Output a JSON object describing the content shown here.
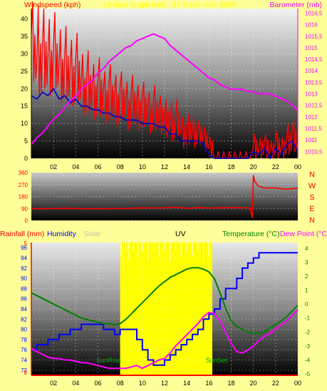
{
  "header": {
    "left_title": "Windspeed (kph)",
    "center_title": "24 hour graph data : 17 November 2006",
    "right_title": "Barometer (mb)"
  },
  "dir_labels": [
    "N",
    "W",
    "S",
    "E",
    "N"
  ],
  "bottom_header": {
    "rainfall": "Rainfall (mm)",
    "humidity": "Humidity",
    "solar": "Solar",
    "uv": "UV",
    "temperature": "Temperature (°C)",
    "dewpoint": "Dew Point (°C)"
  },
  "annotations": {
    "sunrise": "SunRise",
    "sunset": "SunSet"
  },
  "colors": {
    "background": "#ffff99",
    "wind": "#ff0000",
    "wind_avg": "#0000cc",
    "barometer": "#ff00ff",
    "humidity": "#0000ff",
    "temperature": "#008000",
    "dewpoint": "#ff00ff",
    "rain": "#ff0000",
    "daylight": "#ffff00",
    "axis_red": "#ff0000"
  },
  "chart_data": [
    {
      "type": "line",
      "name": "wind-baro",
      "x_tick_labels": [
        "02",
        "04",
        "06",
        "08",
        "10",
        "12",
        "14",
        "16",
        "18",
        "20",
        "22",
        "00"
      ],
      "y_left_ticks": [
        0,
        5,
        10,
        15,
        20,
        25,
        30,
        35,
        40
      ],
      "y_right_ticks": [
        "1010,5",
        "1011",
        "1011,5",
        "1012",
        "1012,5",
        "1013",
        "1013,5",
        "1014",
        "1014,5",
        "1015",
        "1015,5",
        "1016",
        "1016,5"
      ],
      "ylim_left": [
        0,
        43
      ],
      "ylim_right": [
        1010.2,
        1016.7
      ],
      "grid": true,
      "series": [
        {
          "key": "gust",
          "axis": "left",
          "x": [
            0,
            0.5,
            1,
            1.5,
            2,
            2.5,
            3,
            3.5,
            4,
            4.5,
            5,
            5.5,
            6,
            6.5,
            7,
            7.5,
            8,
            8.5,
            9,
            9.5,
            10,
            10.5,
            11,
            11.5,
            12,
            12.5,
            13,
            13.5,
            14,
            14.5,
            15,
            15.5,
            16,
            16.5,
            17,
            17.5,
            18,
            18.5,
            19,
            19.5,
            20,
            20.5,
            21,
            21.5,
            22,
            22.5,
            23,
            23.5,
            24
          ],
          "values": [
            36,
            28,
            32,
            30,
            33,
            27,
            29,
            26,
            28,
            22,
            24,
            21,
            23,
            20,
            22,
            19,
            21,
            17,
            19,
            17,
            18,
            15,
            17,
            14,
            13,
            11,
            12,
            8,
            9,
            7,
            8,
            6,
            3,
            0,
            0,
            0,
            0,
            0,
            0,
            0,
            4,
            3,
            5,
            2,
            5,
            3,
            6,
            8,
            4
          ],
          "spike_max": [
            45,
            44,
            43,
            40,
            42,
            37,
            38,
            34,
            36,
            30,
            31,
            27,
            29,
            25,
            27,
            24,
            25,
            22,
            24,
            21,
            22,
            19,
            21,
            18,
            17,
            16,
            17,
            12,
            13,
            12,
            11,
            9,
            6,
            0,
            0,
            0,
            0,
            0,
            0,
            0,
            7,
            6,
            7,
            5,
            8,
            6,
            10,
            11,
            7
          ],
          "spike_min": [
            22,
            18,
            20,
            18,
            20,
            16,
            17,
            15,
            16,
            12,
            13,
            11,
            12,
            10,
            11,
            9,
            11,
            8,
            10,
            8,
            9,
            7,
            8,
            7,
            6,
            5,
            6,
            3,
            4,
            3,
            4,
            2,
            0,
            0,
            0,
            0,
            0,
            0,
            0,
            0,
            0,
            0,
            0,
            0,
            0,
            0,
            1,
            2,
            0
          ]
        },
        {
          "key": "wind_avg",
          "axis": "left",
          "x": [
            0,
            0.5,
            1,
            1.5,
            2,
            2.5,
            3,
            3.5,
            4,
            4.5,
            5,
            5.5,
            6,
            6.5,
            7,
            7.5,
            8,
            8.5,
            9,
            9.5,
            10,
            10.5,
            11,
            11.5,
            12,
            12.5,
            13,
            13.5,
            14,
            14.5,
            15,
            15.5,
            16,
            16.5,
            17,
            17.5,
            18,
            18.5,
            19,
            19.5,
            20,
            20.5,
            21,
            21.5,
            22,
            22.5,
            23,
            23.5,
            24
          ],
          "values": [
            18,
            17,
            19,
            18,
            20,
            17,
            18,
            16,
            17,
            15,
            15,
            14,
            14,
            13,
            13,
            12,
            12,
            11,
            11,
            11,
            10,
            10,
            10,
            9,
            9,
            7,
            7,
            5,
            5,
            5,
            5,
            4,
            1,
            0,
            0,
            0,
            0,
            0,
            0,
            0,
            2,
            1,
            3,
            0,
            3,
            1,
            4,
            5,
            2
          ]
        },
        {
          "key": "barometer",
          "axis": "right",
          "x": [
            0,
            0.5,
            1,
            1.5,
            2,
            2.5,
            3,
            3.5,
            4,
            4.5,
            5,
            5.5,
            6,
            6.5,
            7,
            7.5,
            8,
            8.5,
            9,
            9.5,
            10,
            10.5,
            11,
            11.5,
            12,
            12.5,
            13,
            13.5,
            14,
            14.5,
            15,
            15.5,
            16,
            16.5,
            17,
            17.5,
            18,
            18.5,
            19,
            19.5,
            20,
            20.5,
            21,
            21.5,
            22,
            22.5,
            23,
            23.5,
            24
          ],
          "values": [
            1010.8,
            1011.1,
            1011.3,
            1011.6,
            1011.9,
            1012.1,
            1012.4,
            1012.7,
            1012.9,
            1013.2,
            1013.4,
            1013.6,
            1013.9,
            1014.1,
            1014.4,
            1014.6,
            1014.8,
            1015.0,
            1015.1,
            1015.3,
            1015.4,
            1015.5,
            1015.6,
            1015.5,
            1015.4,
            1015.1,
            1014.9,
            1014.7,
            1014.5,
            1014.3,
            1014.1,
            1013.9,
            1013.7,
            1013.6,
            1013.4,
            1013.3,
            1013.2,
            1013.2,
            1013.2,
            1013.1,
            1013.1,
            1013.0,
            1013.0,
            1013.0,
            1012.9,
            1012.8,
            1012.7,
            1012.5,
            1012.3
          ]
        }
      ]
    },
    {
      "type": "line",
      "name": "wind-direction",
      "y_ticks": [
        0,
        90,
        180,
        270,
        360
      ],
      "ylim": [
        0,
        360
      ],
      "x": [
        0,
        1,
        2,
        3,
        4,
        5,
        6,
        7,
        8,
        9,
        10,
        11,
        12,
        13,
        14,
        15,
        16,
        17,
        18,
        19,
        19.7,
        19.9,
        20,
        20.1,
        20.4,
        21,
        22,
        23,
        24
      ],
      "values": [
        90,
        88,
        90,
        92,
        90,
        88,
        90,
        89,
        90,
        92,
        95,
        94,
        95,
        100,
        92,
        96,
        94,
        95,
        96,
        95,
        95,
        20,
        340,
        300,
        260,
        245,
        245,
        235,
        245
      ]
    },
    {
      "type": "line",
      "name": "humidity-temp",
      "x_tick_labels": [
        "02",
        "04",
        "06",
        "08",
        "10",
        "12",
        "14",
        "16",
        "18",
        "20",
        "22",
        "00"
      ],
      "y_left_ticks": [
        72,
        74,
        76,
        78,
        80,
        82,
        84,
        86,
        88,
        90,
        92,
        94,
        96
      ],
      "y_right_ticks": [
        -5,
        -4,
        -3,
        -2,
        -1,
        0,
        1,
        2,
        3,
        4
      ],
      "ylim_humidity": [
        71,
        97
      ],
      "ylim_temp": [
        -5.1,
        4.4
      ],
      "rain_axis_ticks": [
        0,
        5
      ],
      "daylight_hours": [
        8.0,
        16.3
      ],
      "grid": true,
      "series": [
        {
          "key": "humidity",
          "axis": "left",
          "x": [
            0,
            0.5,
            1,
            1.5,
            2,
            2.5,
            3,
            3.5,
            4,
            4.5,
            5,
            5.5,
            6,
            6.5,
            7,
            7.5,
            8,
            8.5,
            9,
            9.5,
            10,
            10.5,
            11,
            11.5,
            12,
            12.5,
            13,
            13.5,
            14,
            14.5,
            15,
            15.5,
            16,
            16.5,
            17,
            17.5,
            18,
            18.5,
            19,
            19.5,
            20,
            20.5,
            21,
            21.5,
            22,
            22.5,
            23,
            23.5,
            24
          ],
          "values": [
            76,
            77,
            77,
            78,
            78,
            79,
            79,
            80,
            80,
            81,
            81,
            81,
            81,
            80,
            80,
            79,
            80,
            80,
            80,
            78,
            76,
            74,
            73,
            73,
            74,
            75,
            76,
            77,
            78,
            79,
            80,
            82,
            83,
            84,
            86,
            88,
            88,
            90,
            92,
            93,
            94,
            95,
            95,
            95,
            95,
            95,
            95,
            95,
            95
          ]
        },
        {
          "key": "solar_spikes",
          "axis": "left",
          "x": [
            8.1,
            8.3,
            8.5,
            8.8,
            9.2,
            9.6,
            10,
            10.5,
            11,
            11.5,
            12,
            12.5,
            13,
            13.5,
            14,
            14.5,
            15,
            15.5,
            16
          ],
          "values": [
            96,
            93,
            97,
            95,
            97,
            96,
            97,
            95,
            97,
            96,
            97,
            95,
            97,
            96,
            97,
            96,
            97,
            95,
            96
          ]
        },
        {
          "key": "temperature",
          "axis": "right",
          "x": [
            0,
            0.5,
            1,
            1.5,
            2,
            2.5,
            3,
            3.5,
            4,
            4.5,
            5,
            5.5,
            6,
            6.5,
            7,
            7.5,
            8,
            8.5,
            9,
            9.5,
            10,
            10.5,
            11,
            11.5,
            12,
            12.5,
            13,
            13.5,
            14,
            14.5,
            15,
            15.5,
            16,
            16.5,
            17,
            17.5,
            18,
            18.5,
            19,
            19.5,
            20,
            20.5,
            21,
            21.5,
            22,
            22.5,
            23,
            23.5,
            24
          ],
          "values": [
            0.8,
            0.6,
            0.4,
            0.2,
            0.0,
            -0.2,
            -0.4,
            -0.6,
            -0.8,
            -1.0,
            -1.1,
            -1.2,
            -1.3,
            -1.4,
            -1.4,
            -1.5,
            -1.4,
            -1.1,
            -0.7,
            -0.3,
            0.1,
            0.5,
            0.9,
            1.3,
            1.6,
            1.9,
            2.1,
            2.3,
            2.5,
            2.6,
            2.6,
            2.5,
            2.3,
            1.8,
            0.8,
            -0.3,
            -1.2,
            -1.6,
            -1.8,
            -2.0,
            -2.1,
            -2.1,
            -2.0,
            -1.7,
            -1.5,
            -1.2,
            -0.9,
            -0.5,
            -0.1
          ]
        },
        {
          "key": "dewpoint",
          "axis": "right",
          "x": [
            0,
            0.5,
            1,
            1.5,
            2,
            2.5,
            3,
            3.5,
            4,
            4.5,
            5,
            5.5,
            6,
            6.5,
            7,
            7.5,
            8,
            8.5,
            9,
            9.5,
            10,
            10.5,
            11,
            11.5,
            12,
            12.5,
            13,
            13.5,
            14,
            14.5,
            15,
            15.5,
            16,
            16.5,
            17,
            17.5,
            18,
            18.5,
            19,
            19.5,
            20,
            20.5,
            21,
            21.5,
            22,
            22.5,
            23,
            23.5,
            24
          ],
          "values": [
            -3.2,
            -3.4,
            -3.6,
            -3.8,
            -3.9,
            -3.9,
            -4.0,
            -4.0,
            -4.1,
            -4.2,
            -4.2,
            -4.3,
            -4.4,
            -4.5,
            -4.6,
            -4.6,
            -4.6,
            -4.6,
            -4.5,
            -4.4,
            -4.6,
            -4.4,
            -4.2,
            -4.0,
            -3.9,
            -3.5,
            -3.0,
            -2.6,
            -2.2,
            -1.8,
            -1.4,
            -0.9,
            -0.6,
            -0.7,
            -1.2,
            -2.0,
            -2.8,
            -3.4,
            -3.5,
            -3.3,
            -3.0,
            -2.6,
            -2.3,
            -2.1,
            -1.8,
            -1.5,
            -1.2,
            -0.8,
            -0.4
          ]
        },
        {
          "key": "rain",
          "axis": "rain",
          "x": [
            0,
            24
          ],
          "values": [
            0,
            0
          ]
        }
      ]
    }
  ]
}
